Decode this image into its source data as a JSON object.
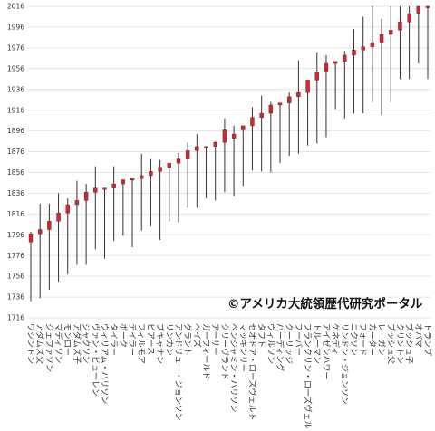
{
  "chart_data": {
    "type": "range",
    "title": "",
    "xlabel": "",
    "ylabel": "",
    "ylim": [
      1716,
      2016
    ],
    "yticks": [
      1716,
      1736,
      1756,
      1776,
      1796,
      1816,
      1836,
      1856,
      1876,
      1896,
      1916,
      1936,
      1956,
      1976,
      1996,
      2016
    ],
    "grid": true,
    "credit": "©アメリカ大統領歴代研究ポータル",
    "term_color": "#d9232e",
    "line_color": "#333333",
    "presidents": [
      {
        "name": "ワシントン",
        "birth": 1732,
        "death": 1799,
        "term_start": 1789,
        "term_end": 1797
      },
      {
        "name": "アダムズ父",
        "birth": 1735,
        "death": 1826,
        "term_start": 1797,
        "term_end": 1801
      },
      {
        "name": "ジェファソン",
        "birth": 1743,
        "death": 1826,
        "term_start": 1801,
        "term_end": 1809
      },
      {
        "name": "マディソン",
        "birth": 1751,
        "death": 1836,
        "term_start": 1809,
        "term_end": 1817
      },
      {
        "name": "モンロー",
        "birth": 1758,
        "death": 1831,
        "term_start": 1817,
        "term_end": 1825
      },
      {
        "name": "アダムズ子",
        "birth": 1767,
        "death": 1848,
        "term_start": 1825,
        "term_end": 1829
      },
      {
        "name": "ジャクソン",
        "birth": 1767,
        "death": 1845,
        "term_start": 1829,
        "term_end": 1837
      },
      {
        "name": "ヴァン・ビューレン",
        "birth": 1782,
        "death": 1862,
        "term_start": 1837,
        "term_end": 1841
      },
      {
        "name": "ウィリアム・ハリソン",
        "birth": 1773,
        "death": 1841,
        "term_start": 1841,
        "term_end": 1841
      },
      {
        "name": "タイラー",
        "birth": 1790,
        "death": 1862,
        "term_start": 1841,
        "term_end": 1845
      },
      {
        "name": "ポーク",
        "birth": 1795,
        "death": 1849,
        "term_start": 1845,
        "term_end": 1849
      },
      {
        "name": "テイラー",
        "birth": 1784,
        "death": 1850,
        "term_start": 1849,
        "term_end": 1850
      },
      {
        "name": "フィルモア",
        "birth": 1800,
        "death": 1874,
        "term_start": 1850,
        "term_end": 1853
      },
      {
        "name": "ピアース",
        "birth": 1804,
        "death": 1869,
        "term_start": 1853,
        "term_end": 1857
      },
      {
        "name": "ブキャナン",
        "birth": 1791,
        "death": 1868,
        "term_start": 1857,
        "term_end": 1861
      },
      {
        "name": "リンカン",
        "birth": 1809,
        "death": 1865,
        "term_start": 1861,
        "term_end": 1865
      },
      {
        "name": "アンドリュー・ジョンソン",
        "birth": 1808,
        "death": 1875,
        "term_start": 1865,
        "term_end": 1869
      },
      {
        "name": "グラント",
        "birth": 1822,
        "death": 1885,
        "term_start": 1869,
        "term_end": 1877
      },
      {
        "name": "ヘイズ",
        "birth": 1822,
        "death": 1893,
        "term_start": 1877,
        "term_end": 1881
      },
      {
        "name": "ガーフィールド",
        "birth": 1831,
        "death": 1881,
        "term_start": 1881,
        "term_end": 1881
      },
      {
        "name": "アーサー",
        "birth": 1829,
        "death": 1886,
        "term_start": 1881,
        "term_end": 1885
      },
      {
        "name": "クリーヴランド",
        "birth": 1837,
        "death": 1908,
        "term_start": 1885,
        "term_end": 1897
      },
      {
        "name": "ベンジャミン・ハリソン",
        "birth": 1833,
        "death": 1901,
        "term_start": 1889,
        "term_end": 1893
      },
      {
        "name": "マッキンリー",
        "birth": 1843,
        "death": 1901,
        "term_start": 1897,
        "term_end": 1901
      },
      {
        "name": "セオドア・ローズヴェルト",
        "birth": 1858,
        "death": 1919,
        "term_start": 1901,
        "term_end": 1909
      },
      {
        "name": "タフト",
        "birth": 1857,
        "death": 1930,
        "term_start": 1909,
        "term_end": 1913
      },
      {
        "name": "ウィルソン",
        "birth": 1856,
        "death": 1924,
        "term_start": 1913,
        "term_end": 1921
      },
      {
        "name": "ハーディング",
        "birth": 1865,
        "death": 1923,
        "term_start": 1921,
        "term_end": 1923
      },
      {
        "name": "クーリッジ",
        "birth": 1872,
        "death": 1933,
        "term_start": 1923,
        "term_end": 1929
      },
      {
        "name": "フーバー",
        "birth": 1874,
        "death": 1964,
        "term_start": 1929,
        "term_end": 1933
      },
      {
        "name": "フランクリン・ローズヴェルト",
        "birth": 1882,
        "death": 1945,
        "term_start": 1933,
        "term_end": 1945
      },
      {
        "name": "トルーマン",
        "birth": 1884,
        "death": 1972,
        "term_start": 1945,
        "term_end": 1953
      },
      {
        "name": "アイゼンハワー",
        "birth": 1890,
        "death": 1969,
        "term_start": 1953,
        "term_end": 1961
      },
      {
        "name": "ケネディ",
        "birth": 1917,
        "death": 1963,
        "term_start": 1961,
        "term_end": 1963
      },
      {
        "name": "リンドン・ジョンソン",
        "birth": 1908,
        "death": 1973,
        "term_start": 1963,
        "term_end": 1969
      },
      {
        "name": "ニクソン",
        "birth": 1913,
        "death": 1994,
        "term_start": 1969,
        "term_end": 1974
      },
      {
        "name": "フォード",
        "birth": 1913,
        "death": 2006,
        "term_start": 1974,
        "term_end": 1977
      },
      {
        "name": "カーター",
        "birth": 1924,
        "death": 2016,
        "term_start": 1977,
        "term_end": 1981
      },
      {
        "name": "レーガン",
        "birth": 1911,
        "death": 2004,
        "term_start": 1981,
        "term_end": 1989
      },
      {
        "name": "ブッシュ父",
        "birth": 1924,
        "death": 2016,
        "term_start": 1989,
        "term_end": 1993
      },
      {
        "name": "クリントン",
        "birth": 1946,
        "death": 2016,
        "term_start": 1993,
        "term_end": 2001
      },
      {
        "name": "ブッシュ子",
        "birth": 1946,
        "death": 2016,
        "term_start": 2001,
        "term_end": 2009
      },
      {
        "name": "オバマ",
        "birth": 1961,
        "death": 2016,
        "term_start": 2009,
        "term_end": 2017
      },
      {
        "name": "トランプ",
        "birth": 1946,
        "death": 2016,
        "term_start": 2017,
        "term_end": 2021
      }
    ]
  }
}
